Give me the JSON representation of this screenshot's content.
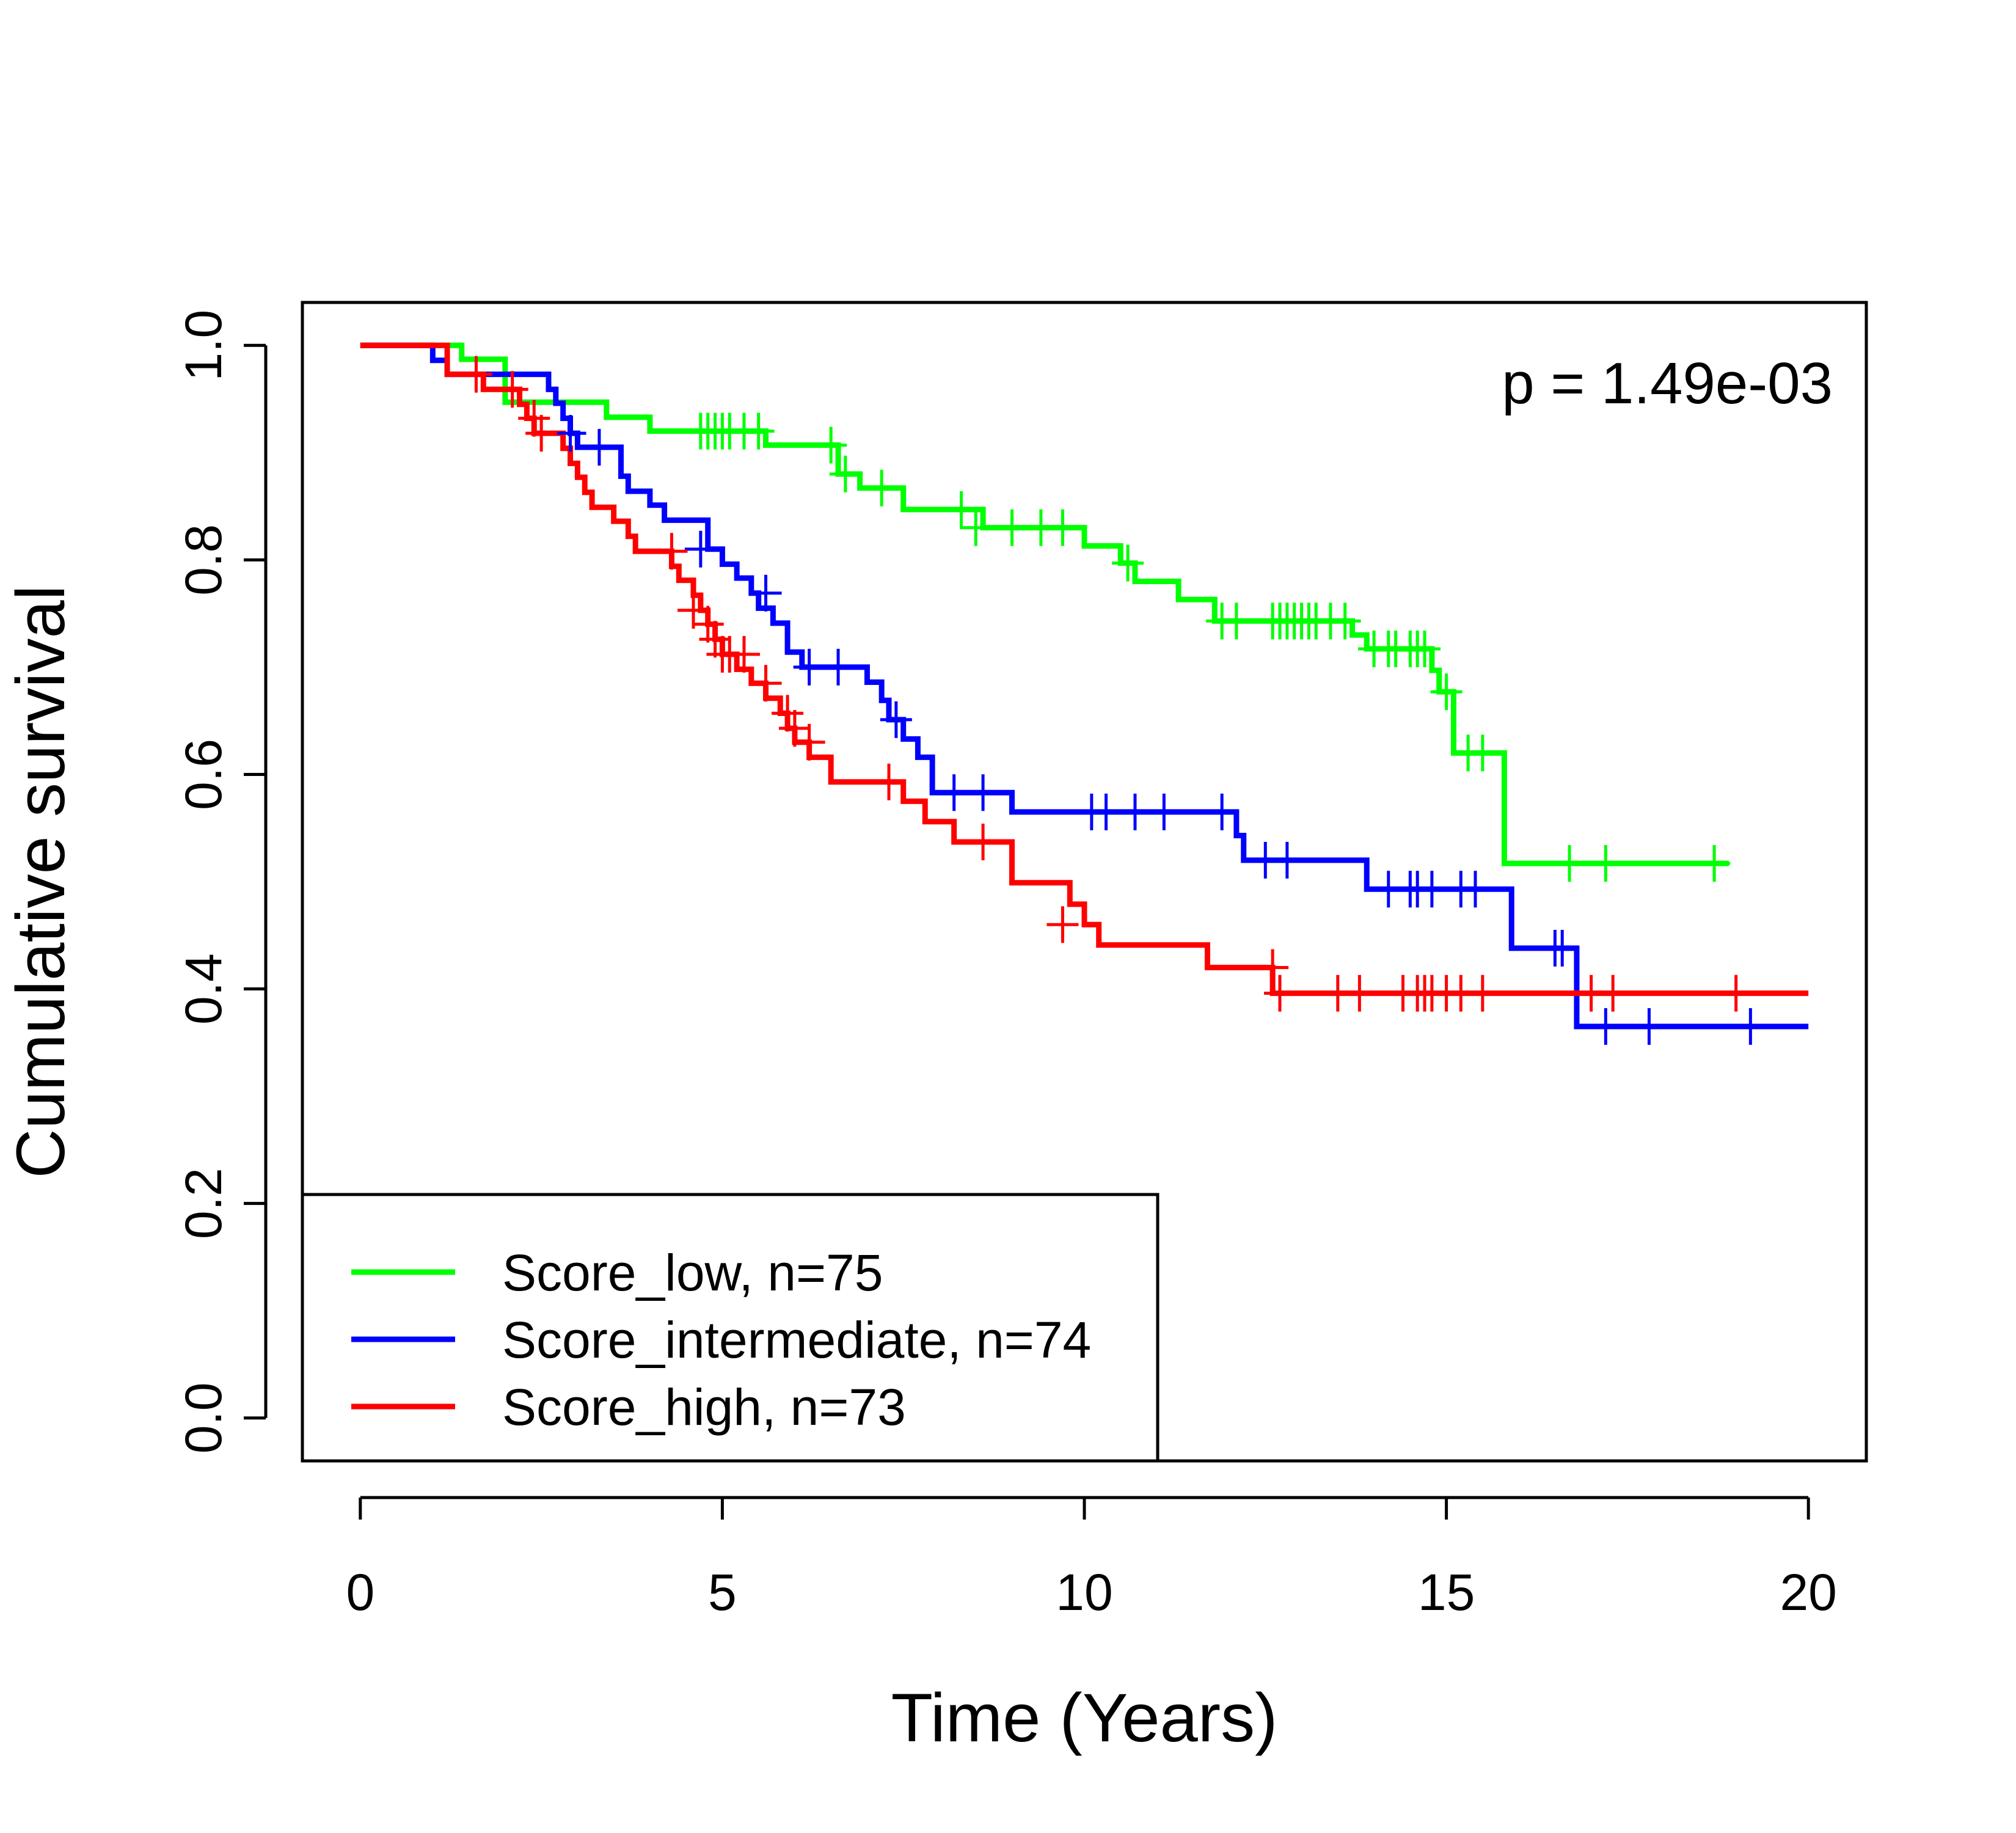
{
  "chart_data": {
    "type": "line",
    "subtype": "kaplan-meier-step",
    "title": "",
    "xlabel": "Time (Years)",
    "ylabel": "Cumulative survival",
    "xlim": [
      -0.8,
      20.8
    ],
    "ylim": [
      -0.04,
      1.04
    ],
    "x_ticks": [
      0,
      5,
      10,
      15,
      20
    ],
    "x_tick_labels": [
      "0",
      "5",
      "10",
      "15",
      "20"
    ],
    "y_ticks": [
      0,
      0.2,
      0.4,
      0.6,
      0.8,
      1.0
    ],
    "y_tick_labels": [
      "0.0",
      "0.2",
      "0.4",
      "0.6",
      "0.8",
      "1.0"
    ],
    "grid": false,
    "legend_position": "bottom-left",
    "annotation": "p = 1.49e-03",
    "series": [
      {
        "name": "Score_low, n=75",
        "color": "#00ff00",
        "steps": [
          [
            0,
            1.0
          ],
          [
            1.4,
            0.987
          ],
          [
            2.0,
            0.947
          ],
          [
            3.4,
            0.933
          ],
          [
            4.0,
            0.92
          ],
          [
            5.6,
            0.907
          ],
          [
            6.6,
            0.88
          ],
          [
            6.9,
            0.867
          ],
          [
            7.5,
            0.847
          ],
          [
            8.6,
            0.83
          ],
          [
            10.0,
            0.813
          ],
          [
            10.5,
            0.797
          ],
          [
            10.7,
            0.78
          ],
          [
            11.3,
            0.763
          ],
          [
            11.8,
            0.743
          ],
          [
            13.7,
            0.73
          ],
          [
            13.9,
            0.717
          ],
          [
            14.8,
            0.697
          ],
          [
            14.9,
            0.677
          ],
          [
            15.1,
            0.62
          ],
          [
            15.8,
            0.517
          ],
          [
            18.9,
            0.517
          ]
        ],
        "censors": [
          [
            4.7,
            0.92
          ],
          [
            4.8,
            0.92
          ],
          [
            4.9,
            0.92
          ],
          [
            5.0,
            0.92
          ],
          [
            5.1,
            0.92
          ],
          [
            5.3,
            0.92
          ],
          [
            5.5,
            0.92
          ],
          [
            6.5,
            0.907
          ],
          [
            6.7,
            0.88
          ],
          [
            7.2,
            0.867
          ],
          [
            8.3,
            0.847
          ],
          [
            8.5,
            0.83
          ],
          [
            9.0,
            0.83
          ],
          [
            9.4,
            0.83
          ],
          [
            9.7,
            0.83
          ],
          [
            10.6,
            0.797
          ],
          [
            11.9,
            0.743
          ],
          [
            12.1,
            0.743
          ],
          [
            12.6,
            0.743
          ],
          [
            12.7,
            0.743
          ],
          [
            12.8,
            0.743
          ],
          [
            12.9,
            0.743
          ],
          [
            13.0,
            0.743
          ],
          [
            13.1,
            0.743
          ],
          [
            13.2,
            0.743
          ],
          [
            13.4,
            0.743
          ],
          [
            13.6,
            0.743
          ],
          [
            14.0,
            0.717
          ],
          [
            14.2,
            0.717
          ],
          [
            14.3,
            0.717
          ],
          [
            14.5,
            0.717
          ],
          [
            14.6,
            0.717
          ],
          [
            14.7,
            0.717
          ],
          [
            15.0,
            0.677
          ],
          [
            15.3,
            0.62
          ],
          [
            15.5,
            0.62
          ],
          [
            16.7,
            0.517
          ],
          [
            17.2,
            0.517
          ],
          [
            18.7,
            0.517
          ]
        ]
      },
      {
        "name": "Score_intermediate, n=74",
        "color": "#0000ff",
        "steps": [
          [
            0,
            1.0
          ],
          [
            1.0,
            0.986
          ],
          [
            1.2,
            0.973
          ],
          [
            2.6,
            0.959
          ],
          [
            2.7,
            0.946
          ],
          [
            2.8,
            0.932
          ],
          [
            2.9,
            0.918
          ],
          [
            3.0,
            0.905
          ],
          [
            3.6,
            0.878
          ],
          [
            3.7,
            0.864
          ],
          [
            4.0,
            0.851
          ],
          [
            4.2,
            0.837
          ],
          [
            4.8,
            0.81
          ],
          [
            5.0,
            0.796
          ],
          [
            5.2,
            0.783
          ],
          [
            5.4,
            0.769
          ],
          [
            5.5,
            0.755
          ],
          [
            5.7,
            0.741
          ],
          [
            5.9,
            0.714
          ],
          [
            6.1,
            0.7
          ],
          [
            7.0,
            0.686
          ],
          [
            7.2,
            0.669
          ],
          [
            7.3,
            0.651
          ],
          [
            7.5,
            0.633
          ],
          [
            7.7,
            0.616
          ],
          [
            7.9,
            0.583
          ],
          [
            9.0,
            0.565
          ],
          [
            12.1,
            0.543
          ],
          [
            12.2,
            0.52
          ],
          [
            13.9,
            0.493
          ],
          [
            15.9,
            0.438
          ],
          [
            16.8,
            0.365
          ],
          [
            20.0,
            0.365
          ]
        ],
        "censors": [
          [
            2.9,
            0.918
          ],
          [
            3.3,
            0.905
          ],
          [
            4.7,
            0.81
          ],
          [
            5.6,
            0.769
          ],
          [
            6.2,
            0.7
          ],
          [
            6.6,
            0.7
          ],
          [
            7.4,
            0.651
          ],
          [
            8.2,
            0.583
          ],
          [
            8.6,
            0.583
          ],
          [
            10.1,
            0.565
          ],
          [
            10.3,
            0.565
          ],
          [
            10.7,
            0.565
          ],
          [
            11.1,
            0.565
          ],
          [
            11.9,
            0.565
          ],
          [
            12.5,
            0.52
          ],
          [
            12.8,
            0.52
          ],
          [
            14.2,
            0.493
          ],
          [
            14.5,
            0.493
          ],
          [
            14.6,
            0.493
          ],
          [
            14.8,
            0.493
          ],
          [
            15.2,
            0.493
          ],
          [
            15.4,
            0.493
          ],
          [
            16.5,
            0.438
          ],
          [
            16.6,
            0.438
          ],
          [
            17.2,
            0.365
          ],
          [
            17.8,
            0.365
          ],
          [
            19.2,
            0.365
          ]
        ]
      },
      {
        "name": "Score_high, n=73",
        "color": "#ff0000",
        "steps": [
          [
            0,
            1.0
          ],
          [
            1.2,
            0.973
          ],
          [
            1.7,
            0.959
          ],
          [
            2.2,
            0.945
          ],
          [
            2.3,
            0.932
          ],
          [
            2.4,
            0.918
          ],
          [
            2.8,
            0.904
          ],
          [
            2.9,
            0.89
          ],
          [
            3.0,
            0.877
          ],
          [
            3.1,
            0.863
          ],
          [
            3.2,
            0.849
          ],
          [
            3.5,
            0.836
          ],
          [
            3.7,
            0.822
          ],
          [
            3.8,
            0.808
          ],
          [
            4.3,
            0.794
          ],
          [
            4.4,
            0.781
          ],
          [
            4.6,
            0.767
          ],
          [
            4.7,
            0.753
          ],
          [
            4.8,
            0.74
          ],
          [
            4.9,
            0.726
          ],
          [
            5.0,
            0.712
          ],
          [
            5.2,
            0.698
          ],
          [
            5.4,
            0.685
          ],
          [
            5.6,
            0.671
          ],
          [
            5.8,
            0.657
          ],
          [
            5.9,
            0.643
          ],
          [
            6.0,
            0.63
          ],
          [
            6.2,
            0.616
          ],
          [
            6.5,
            0.593
          ],
          [
            7.5,
            0.575
          ],
          [
            7.8,
            0.556
          ],
          [
            8.2,
            0.537
          ],
          [
            9.0,
            0.499
          ],
          [
            9.8,
            0.479
          ],
          [
            10.0,
            0.46
          ],
          [
            10.2,
            0.441
          ],
          [
            11.7,
            0.42
          ],
          [
            12.6,
            0.396
          ],
          [
            20.0,
            0.396
          ]
        ],
        "censors": [
          [
            1.6,
            0.973
          ],
          [
            2.1,
            0.959
          ],
          [
            2.4,
            0.932
          ],
          [
            2.5,
            0.918
          ],
          [
            4.3,
            0.808
          ],
          [
            4.6,
            0.753
          ],
          [
            4.8,
            0.74
          ],
          [
            4.9,
            0.726
          ],
          [
            5.0,
            0.712
          ],
          [
            5.1,
            0.712
          ],
          [
            5.3,
            0.712
          ],
          [
            5.6,
            0.685
          ],
          [
            5.9,
            0.657
          ],
          [
            6.0,
            0.643
          ],
          [
            6.2,
            0.63
          ],
          [
            7.3,
            0.593
          ],
          [
            8.6,
            0.537
          ],
          [
            9.7,
            0.46
          ],
          [
            12.6,
            0.42
          ],
          [
            12.7,
            0.396
          ],
          [
            13.5,
            0.396
          ],
          [
            13.8,
            0.396
          ],
          [
            14.4,
            0.396
          ],
          [
            14.6,
            0.396
          ],
          [
            14.7,
            0.396
          ],
          [
            14.8,
            0.396
          ],
          [
            15.0,
            0.396
          ],
          [
            15.2,
            0.396
          ],
          [
            15.5,
            0.396
          ],
          [
            17.0,
            0.396
          ],
          [
            17.3,
            0.396
          ],
          [
            19.0,
            0.396
          ]
        ]
      }
    ]
  }
}
